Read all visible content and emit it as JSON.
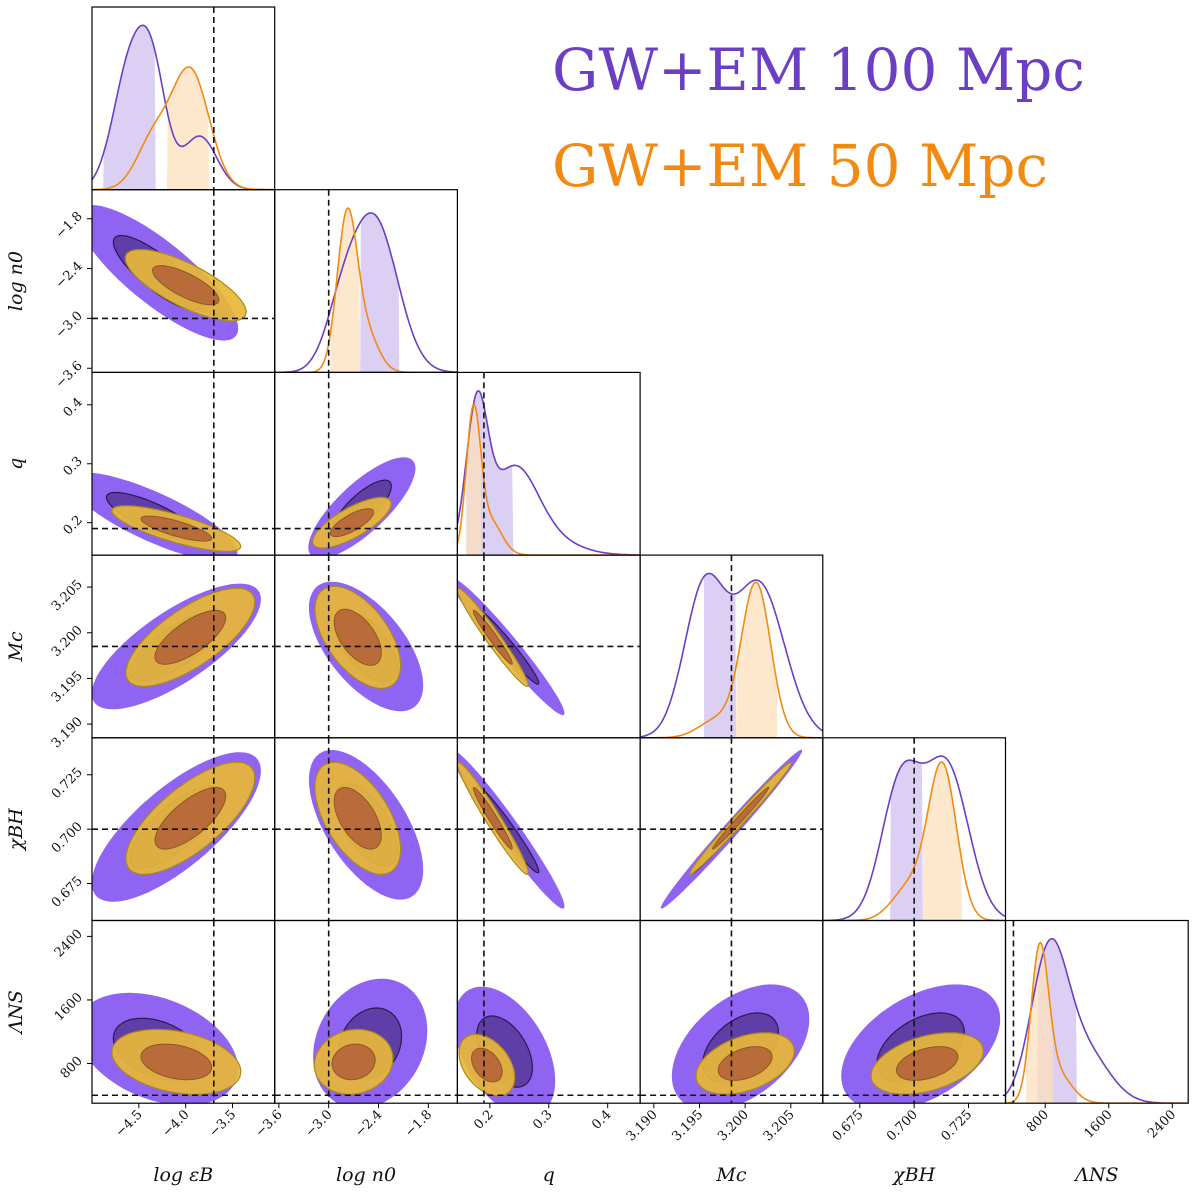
{
  "chart_data": {
    "type": "corner",
    "title": "",
    "legend": [
      {
        "label": "GW+EM 100 Mpc",
        "color": "#6b3fc4"
      },
      {
        "label": "GW+EM 50 Mpc",
        "color": "#f28a12"
      }
    ],
    "legend_position": "top-right",
    "colors": {
      "purple_line": "#6b3fc4",
      "purple_fill_outer": "#8a5cf2",
      "purple_fill_inner": "#5a3a9e",
      "orange_line": "#f28a12",
      "orange_fill_outer": "#e8b73a",
      "orange_fill_inner": "#b5663a",
      "truth_line": "#111111"
    },
    "parameters": [
      {
        "key": "logeps",
        "label": "log εB",
        "range": [
          -5.0,
          -3.05
        ],
        "ticks": [
          -4.5,
          -4.0,
          -3.5
        ],
        "tick_labels": [
          "−4.5",
          "−4.0",
          "−3.5"
        ],
        "truth": -3.7
      },
      {
        "key": "logn0",
        "label": "log n0",
        "range": [
          -3.65,
          -1.45
        ],
        "ticks": [
          -3.6,
          -3.0,
          -2.4,
          -1.8
        ],
        "tick_labels": [
          "−3.6",
          "−3.0",
          "−2.4",
          "−1.8"
        ],
        "truth": -3.0
      },
      {
        "key": "q",
        "label": "q",
        "range": [
          0.145,
          0.455
        ],
        "ticks": [
          0.2,
          0.3,
          0.4
        ],
        "tick_labels": [
          "0.2",
          "0.3",
          "0.4"
        ],
        "truth": 0.19
      },
      {
        "key": "Mc",
        "label": "Mc",
        "range": [
          3.1885,
          3.2085
        ],
        "ticks": [
          3.19,
          3.195,
          3.2,
          3.205
        ],
        "tick_labels": [
          "3.190",
          "3.195",
          "3.200",
          "3.205"
        ],
        "truth": 3.1985
      },
      {
        "key": "chi",
        "label": "χBH",
        "range": [
          0.658,
          0.742
        ],
        "ticks": [
          0.675,
          0.7,
          0.725
        ],
        "tick_labels": [
          "0.675",
          "0.700",
          "0.725"
        ],
        "truth": 0.7
      },
      {
        "key": "lam",
        "label": "ΛNS",
        "range": [
          300,
          2600
        ],
        "ticks": [
          800,
          1600,
          2400
        ],
        "tick_labels": [
          "800",
          "1600",
          "2400"
        ],
        "truth": 400
      }
    ],
    "marginals": [
      {
        "param": "logeps",
        "series": [
          {
            "name": "GW+EM 100 Mpc",
            "peaks": [
              [
                -4.6,
                0.18,
                1.0
              ],
              [
                -4.35,
                0.15,
                0.85
              ],
              [
                -3.85,
                0.18,
                0.45
              ]
            ],
            "ci": [
              -4.88,
              -4.32
            ]
          },
          {
            "name": "GW+EM 50 Mpc",
            "peaks": [
              [
                -3.95,
                0.2,
                1.0
              ],
              [
                -4.35,
                0.18,
                0.4
              ]
            ],
            "ci": [
              -4.2,
              -3.75
            ]
          }
        ]
      },
      {
        "param": "logn0",
        "series": [
          {
            "name": "GW+EM 100 Mpc",
            "peaks": [
              [
                -2.45,
                0.28,
                1.0
              ],
              [
                -2.85,
                0.2,
                0.3
              ]
            ],
            "ci": [
              -2.62,
              -2.15
            ]
          },
          {
            "name": "GW+EM 50 Mpc",
            "peaks": [
              [
                -2.78,
                0.12,
                1.0
              ],
              [
                -2.55,
                0.15,
                0.25
              ]
            ],
            "ci": [
              -2.98,
              -2.62
            ]
          }
        ]
      },
      {
        "param": "q",
        "series": [
          {
            "name": "GW+EM 100 Mpc",
            "peaks": [
              [
                0.178,
                0.018,
                1.0
              ],
              [
                0.24,
                0.04,
                0.6
              ],
              [
                0.3,
                0.05,
                0.1
              ]
            ],
            "ci": [
              0.16,
              0.24
            ]
          },
          {
            "name": "GW+EM 50 Mpc",
            "peaks": [
              [
                0.172,
                0.012,
                1.0
              ],
              [
                0.2,
                0.02,
                0.25
              ]
            ],
            "ci": [
              0.16,
              0.185
            ]
          }
        ]
      },
      {
        "param": "Mc",
        "series": [
          {
            "name": "GW+EM 100 Mpc",
            "peaks": [
              [
                3.1955,
                0.0022,
                0.95
              ],
              [
                3.2015,
                0.0028,
                1.0
              ]
            ],
            "ci": [
              3.1955,
              3.199
            ]
          },
          {
            "name": "GW+EM 50 Mpc",
            "peaks": [
              [
                3.2012,
                0.0016,
                1.0
              ],
              [
                3.197,
                0.002,
                0.12
              ]
            ],
            "ci": [
              3.199,
              3.2035
            ]
          }
        ]
      },
      {
        "param": "chi",
        "series": [
          {
            "name": "GW+EM 100 Mpc",
            "peaks": [
              [
                0.694,
                0.009,
                0.9
              ],
              [
                0.715,
                0.01,
                1.0
              ]
            ],
            "ci": [
              0.689,
              0.704
            ]
          },
          {
            "name": "GW+EM 50 Mpc",
            "peaks": [
              [
                0.713,
                0.0065,
                1.0
              ],
              [
                0.698,
                0.008,
                0.22
              ]
            ],
            "ci": [
              0.704,
              0.722
            ]
          }
        ]
      },
      {
        "param": "lam",
        "series": [
          {
            "name": "GW+EM 100 Mpc",
            "peaks": [
              [
                850,
                230,
                1.0
              ],
              [
                1300,
                300,
                0.35
              ]
            ],
            "ci": [
              700,
              1200
            ]
          },
          {
            "name": "GW+EM 50 Mpc",
            "peaks": [
              [
                730,
                110,
                1.0
              ],
              [
                950,
                180,
                0.2
              ]
            ],
            "ci": [
              560,
              900
            ]
          }
        ]
      }
    ],
    "joints": [
      {
        "x": "logeps",
        "y": "logn0",
        "series": [
          {
            "name": "GW+EM 100 Mpc",
            "center": [
              -4.3,
              -2.45
            ],
            "sd": [
              0.4,
              0.38
            ],
            "rho": -0.82
          },
          {
            "name": "GW+EM 50 Mpc",
            "center": [
              -4.0,
              -2.6
            ],
            "sd": [
              0.3,
              0.2
            ],
            "rho": -0.75
          }
        ]
      },
      {
        "x": "logeps",
        "y": "q",
        "series": [
          {
            "name": "GW+EM 100 Mpc",
            "center": [
              -4.35,
              0.21
            ],
            "sd": [
              0.42,
              0.035
            ],
            "rho": -0.8
          },
          {
            "name": "GW+EM 50 Mpc",
            "center": [
              -4.1,
              0.19
            ],
            "sd": [
              0.32,
              0.018
            ],
            "rho": -0.78
          }
        ]
      },
      {
        "x": "logn0",
        "y": "q",
        "series": [
          {
            "name": "GW+EM 100 Mpc",
            "center": [
              -2.6,
              0.225
            ],
            "sd": [
              0.3,
              0.04
            ],
            "rho": 0.78
          },
          {
            "name": "GW+EM 50 Mpc",
            "center": [
              -2.72,
              0.2
            ],
            "sd": [
              0.22,
              0.02
            ],
            "rho": 0.75
          }
        ]
      },
      {
        "x": "logeps",
        "y": "Mc",
        "series": [
          {
            "name": "GW+EM 100 Mpc",
            "center": [
              -4.1,
              3.1985
            ],
            "sd": [
              0.42,
              0.0032
            ],
            "rho": 0.75
          },
          {
            "name": "GW+EM 50 Mpc",
            "center": [
              -3.95,
              3.1995
            ],
            "sd": [
              0.32,
              0.0025
            ],
            "rho": 0.72
          }
        ]
      },
      {
        "x": "logn0",
        "y": "Mc",
        "series": [
          {
            "name": "GW+EM 100 Mpc",
            "center": [
              -2.55,
              3.1985
            ],
            "sd": [
              0.32,
              0.0033
            ],
            "rho": -0.6
          },
          {
            "name": "GW+EM 50 Mpc",
            "center": [
              -2.65,
              3.1995
            ],
            "sd": [
              0.24,
              0.0026
            ],
            "rho": -0.55
          }
        ]
      },
      {
        "x": "q",
        "y": "Mc",
        "series": [
          {
            "name": "GW+EM 100 Mpc",
            "center": [
              0.23,
              3.1985
            ],
            "sd": [
              0.045,
              0.0035
            ],
            "rho": -0.97
          },
          {
            "name": "GW+EM 50 Mpc",
            "center": [
              0.205,
              3.1995
            ],
            "sd": [
              0.028,
              0.0025
            ],
            "rho": -0.97
          }
        ]
      },
      {
        "x": "logeps",
        "y": "chi",
        "series": [
          {
            "name": "GW+EM 100 Mpc",
            "center": [
              -4.1,
              0.701
            ],
            "sd": [
              0.42,
              0.016
            ],
            "rho": 0.75
          },
          {
            "name": "GW+EM 50 Mpc",
            "center": [
              -3.95,
              0.705
            ],
            "sd": [
              0.32,
              0.012
            ],
            "rho": 0.72
          }
        ]
      },
      {
        "x": "logn0",
        "y": "chi",
        "series": [
          {
            "name": "GW+EM 100 Mpc",
            "center": [
              -2.55,
              0.702
            ],
            "sd": [
              0.32,
              0.016
            ],
            "rho": -0.6
          },
          {
            "name": "GW+EM 50 Mpc",
            "center": [
              -2.65,
              0.705
            ],
            "sd": [
              0.24,
              0.012
            ],
            "rho": -0.55
          }
        ]
      },
      {
        "x": "q",
        "y": "chi",
        "series": [
          {
            "name": "GW+EM 100 Mpc",
            "center": [
              0.23,
              0.7
            ],
            "sd": [
              0.045,
              0.017
            ],
            "rho": -0.97
          },
          {
            "name": "GW+EM 50 Mpc",
            "center": [
              0.205,
              0.705
            ],
            "sd": [
              0.028,
              0.012
            ],
            "rho": -0.97
          }
        ]
      },
      {
        "x": "Mc",
        "y": "chi",
        "series": [
          {
            "name": "GW+EM 100 Mpc",
            "center": [
              3.1985,
              0.7
            ],
            "sd": [
              0.0036,
              0.017
            ],
            "rho": 0.99
          },
          {
            "name": "GW+EM 50 Mpc",
            "center": [
              3.1995,
              0.705
            ],
            "sd": [
              0.0026,
              0.012
            ],
            "rho": 0.99
          }
        ]
      },
      {
        "x": "logeps",
        "y": "lam",
        "series": [
          {
            "name": "GW+EM 100 Mpc",
            "center": [
              -4.3,
              980
            ],
            "sd": [
              0.4,
              330
            ],
            "rho": -0.35
          },
          {
            "name": "GW+EM 50 Mpc",
            "center": [
              -4.1,
              820
            ],
            "sd": [
              0.32,
              190
            ],
            "rho": -0.3
          }
        ]
      },
      {
        "x": "logn0",
        "y": "lam",
        "series": [
          {
            "name": "GW+EM 100 Mpc",
            "center": [
              -2.5,
              1050
            ],
            "sd": [
              0.32,
              380
            ],
            "rho": 0.2
          },
          {
            "name": "GW+EM 50 Mpc",
            "center": [
              -2.7,
              820
            ],
            "sd": [
              0.22,
              190
            ],
            "rho": 0.1
          }
        ]
      },
      {
        "x": "q",
        "y": "lam",
        "series": [
          {
            "name": "GW+EM 100 Mpc",
            "center": [
              0.225,
              950
            ],
            "sd": [
              0.04,
              380
            ],
            "rho": -0.45
          },
          {
            "name": "GW+EM 50 Mpc",
            "center": [
              0.195,
              780
            ],
            "sd": [
              0.022,
              180
            ],
            "rho": -0.4
          }
        ]
      },
      {
        "x": "Mc",
        "y": "lam",
        "series": [
          {
            "name": "GW+EM 100 Mpc",
            "center": [
              3.1995,
              1000
            ],
            "sd": [
              0.0035,
              370
            ],
            "rho": 0.45
          },
          {
            "name": "GW+EM 50 Mpc",
            "center": [
              3.2,
              800
            ],
            "sd": [
              0.0025,
              180
            ],
            "rho": 0.4
          }
        ]
      },
      {
        "x": "chi",
        "y": "lam",
        "series": [
          {
            "name": "GW+EM 100 Mpc",
            "center": [
              0.703,
              1000
            ],
            "sd": [
              0.017,
              370
            ],
            "rho": 0.45
          },
          {
            "name": "GW+EM 50 Mpc",
            "center": [
              0.706,
              800
            ],
            "sd": [
              0.012,
              180
            ],
            "rho": 0.4
          }
        ]
      }
    ]
  }
}
